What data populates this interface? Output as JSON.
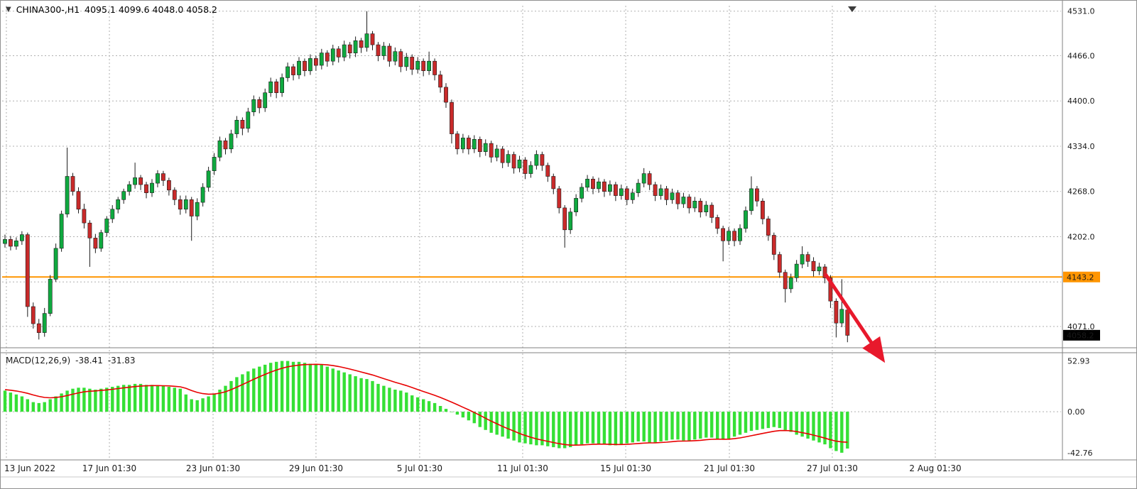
{
  "header": {
    "dropdown_icon": "▼",
    "symbol_timeframe": "CHINA300-,H1",
    "ohlc_text": "4095.1 4099.6 4048.0 4058.2"
  },
  "macd_label": {
    "name": "MACD(12,26,9)",
    "macd_value": "-38.41",
    "signal_value": "-31.83"
  },
  "colors": {
    "background": "#ffffff",
    "grid": "#b0b0b0",
    "wick": "#1c1c1c",
    "candle_up": "#0fa93f",
    "candle_down": "#c92a2a",
    "macd_hist": "#35e035",
    "macd_signal": "#e80000",
    "hline": "#ff9500",
    "arrow": "#e8192c",
    "tag_current_bg": "#000000",
    "tag_text": "#ffffff"
  },
  "chart_data": {
    "type": "candlestick+macd",
    "symbol": "CHINA300-",
    "timeframe": "H1",
    "current_bar": {
      "open": 4095.1,
      "high": 4099.6,
      "low": 4048.0,
      "close": 4058.2
    },
    "horizontal_line_price": 4143.2,
    "y_range_main": [
      4042,
      4539
    ],
    "x_used_fraction": 0.801,
    "price_axis": {
      "gridlines": [
        4531,
        4466,
        4400,
        4334,
        4268,
        4202,
        4136,
        4071
      ],
      "labels": [
        {
          "v": 4531,
          "text": "4531.0"
        },
        {
          "v": 4466,
          "text": "4466.0"
        },
        {
          "v": 4400,
          "text": "4400.0"
        },
        {
          "v": 4334,
          "text": "4334.0"
        },
        {
          "v": 4268,
          "text": "4268.0"
        },
        {
          "v": 4202,
          "text": "4202.0"
        },
        {
          "v": 4071,
          "text": "4071.0"
        }
      ],
      "hline_tag": "4143.2",
      "current_tag": "4058.2"
    },
    "time_axis": [
      {
        "text": "13 Jun 2022",
        "f": 0.004
      },
      {
        "text": "17 Jun 01:30",
        "f": 0.1013
      },
      {
        "text": "23 Jun 01:30",
        "f": 0.1992
      },
      {
        "text": "29 Jun 01:30",
        "f": 0.2964
      },
      {
        "text": "5 Jul 01:30",
        "f": 0.3943
      },
      {
        "text": "11 Jul 01:30",
        "f": 0.4916
      },
      {
        "text": "15 Jul 01:30",
        "f": 0.5889
      },
      {
        "text": "21 Jul 01:30",
        "f": 0.6868
      },
      {
        "text": "27 Jul 01:30",
        "f": 0.784
      },
      {
        "text": "2 Aug 01:30",
        "f": 0.8813
      }
    ],
    "candles": [
      [
        4192,
        4205,
        4186,
        4198
      ],
      [
        4198,
        4203,
        4182,
        4188
      ],
      [
        4188,
        4201,
        4183,
        4196
      ],
      [
        4196,
        4210,
        4190,
        4205
      ],
      [
        4205,
        4208,
        4085,
        4100
      ],
      [
        4100,
        4106,
        4068,
        4075
      ],
      [
        4075,
        4082,
        4052,
        4062
      ],
      [
        4062,
        4098,
        4056,
        4090
      ],
      [
        4090,
        4146,
        4086,
        4140
      ],
      [
        4140,
        4192,
        4136,
        4185
      ],
      [
        4185,
        4240,
        4180,
        4235
      ],
      [
        4235,
        4332,
        4230,
        4290
      ],
      [
        4290,
        4295,
        4262,
        4268
      ],
      [
        4268,
        4274,
        4236,
        4242
      ],
      [
        4242,
        4250,
        4214,
        4222
      ],
      [
        4222,
        4226,
        4158,
        4200
      ],
      [
        4200,
        4206,
        4178,
        4185
      ],
      [
        4185,
        4212,
        4180,
        4208
      ],
      [
        4208,
        4232,
        4202,
        4228
      ],
      [
        4228,
        4248,
        4222,
        4242
      ],
      [
        4242,
        4260,
        4236,
        4256
      ],
      [
        4256,
        4272,
        4250,
        4268
      ],
      [
        4268,
        4283,
        4262,
        4278
      ],
      [
        4278,
        4310,
        4272,
        4288
      ],
      [
        4288,
        4292,
        4270,
        4278
      ],
      [
        4278,
        4282,
        4258,
        4266
      ],
      [
        4266,
        4286,
        4260,
        4280
      ],
      [
        4280,
        4299,
        4274,
        4294
      ],
      [
        4294,
        4298,
        4276,
        4284
      ],
      [
        4284,
        4288,
        4262,
        4270
      ],
      [
        4270,
        4274,
        4248,
        4256
      ],
      [
        4256,
        4262,
        4234,
        4242
      ],
      [
        4242,
        4262,
        4236,
        4256
      ],
      [
        4256,
        4260,
        4196,
        4232
      ],
      [
        4232,
        4258,
        4226,
        4252
      ],
      [
        4252,
        4280,
        4246,
        4274
      ],
      [
        4274,
        4304,
        4268,
        4298
      ],
      [
        4298,
        4324,
        4292,
        4318
      ],
      [
        4318,
        4348,
        4312,
        4342
      ],
      [
        4342,
        4346,
        4322,
        4330
      ],
      [
        4330,
        4358,
        4324,
        4352
      ],
      [
        4352,
        4378,
        4346,
        4372
      ],
      [
        4372,
        4376,
        4350,
        4360
      ],
      [
        4360,
        4390,
        4354,
        4384
      ],
      [
        4384,
        4408,
        4378,
        4402
      ],
      [
        4402,
        4406,
        4382,
        4390
      ],
      [
        4390,
        4418,
        4384,
        4412
      ],
      [
        4412,
        4434,
        4406,
        4428
      ],
      [
        4428,
        4432,
        4404,
        4412
      ],
      [
        4412,
        4440,
        4406,
        4434
      ],
      [
        4434,
        4456,
        4428,
        4450
      ],
      [
        4450,
        4454,
        4430,
        4438
      ],
      [
        4438,
        4464,
        4432,
        4458
      ],
      [
        4458,
        4462,
        4436,
        4444
      ],
      [
        4444,
        4468,
        4438,
        4462
      ],
      [
        4462,
        4466,
        4444,
        4452
      ],
      [
        4452,
        4476,
        4446,
        4470
      ],
      [
        4470,
        4474,
        4450,
        4458
      ],
      [
        4458,
        4482,
        4452,
        4476
      ],
      [
        4476,
        4480,
        4456,
        4464
      ],
      [
        4464,
        4488,
        4458,
        4482
      ],
      [
        4482,
        4486,
        4462,
        4470
      ],
      [
        4470,
        4494,
        4464,
        4488
      ],
      [
        4488,
        4492,
        4470,
        4478
      ],
      [
        4478,
        4531,
        4472,
        4498
      ],
      [
        4498,
        4502,
        4474,
        4482
      ],
      [
        4482,
        4486,
        4458,
        4466
      ],
      [
        4466,
        4486,
        4460,
        4480
      ],
      [
        4480,
        4484,
        4450,
        4458
      ],
      [
        4458,
        4478,
        4452,
        4472
      ],
      [
        4472,
        4476,
        4442,
        4450
      ],
      [
        4450,
        4470,
        4444,
        4464
      ],
      [
        4464,
        4468,
        4438,
        4446
      ],
      [
        4446,
        4464,
        4440,
        4458
      ],
      [
        4458,
        4462,
        4436,
        4444
      ],
      [
        4444,
        4472,
        4438,
        4458
      ],
      [
        4458,
        4462,
        4430,
        4438
      ],
      [
        4438,
        4444,
        4412,
        4420
      ],
      [
        4420,
        4426,
        4390,
        4398
      ],
      [
        4398,
        4402,
        4338,
        4352
      ],
      [
        4352,
        4356,
        4322,
        4330
      ],
      [
        4330,
        4352,
        4324,
        4346
      ],
      [
        4346,
        4350,
        4322,
        4330
      ],
      [
        4330,
        4350,
        4324,
        4344
      ],
      [
        4344,
        4348,
        4318,
        4326
      ],
      [
        4326,
        4344,
        4320,
        4338
      ],
      [
        4338,
        4342,
        4310,
        4318
      ],
      [
        4318,
        4336,
        4312,
        4330
      ],
      [
        4330,
        4334,
        4302,
        4310
      ],
      [
        4310,
        4328,
        4304,
        4322
      ],
      [
        4322,
        4326,
        4294,
        4302
      ],
      [
        4302,
        4320,
        4296,
        4314
      ],
      [
        4314,
        4318,
        4286,
        4294
      ],
      [
        4294,
        4312,
        4288,
        4306
      ],
      [
        4306,
        4328,
        4300,
        4322
      ],
      [
        4322,
        4326,
        4298,
        4306
      ],
      [
        4306,
        4310,
        4282,
        4290
      ],
      [
        4290,
        4294,
        4264,
        4272
      ],
      [
        4272,
        4276,
        4236,
        4244
      ],
      [
        4244,
        4248,
        4186,
        4212
      ],
      [
        4212,
        4244,
        4206,
        4238
      ],
      [
        4238,
        4264,
        4232,
        4258
      ],
      [
        4258,
        4280,
        4252,
        4274
      ],
      [
        4274,
        4292,
        4268,
        4286
      ],
      [
        4286,
        4290,
        4264,
        4272
      ],
      [
        4272,
        4288,
        4266,
        4282
      ],
      [
        4282,
        4286,
        4260,
        4268
      ],
      [
        4268,
        4284,
        4262,
        4278
      ],
      [
        4278,
        4282,
        4254,
        4262
      ],
      [
        4262,
        4278,
        4256,
        4272
      ],
      [
        4272,
        4276,
        4248,
        4256
      ],
      [
        4256,
        4272,
        4250,
        4266
      ],
      [
        4266,
        4286,
        4260,
        4280
      ],
      [
        4280,
        4302,
        4274,
        4294
      ],
      [
        4294,
        4298,
        4270,
        4278
      ],
      [
        4278,
        4282,
        4254,
        4262
      ],
      [
        4262,
        4278,
        4256,
        4272
      ],
      [
        4272,
        4276,
        4248,
        4256
      ],
      [
        4256,
        4272,
        4250,
        4266
      ],
      [
        4266,
        4270,
        4242,
        4250
      ],
      [
        4250,
        4266,
        4244,
        4260
      ],
      [
        4260,
        4264,
        4236,
        4244
      ],
      [
        4244,
        4260,
        4238,
        4254
      ],
      [
        4254,
        4258,
        4230,
        4238
      ],
      [
        4238,
        4254,
        4232,
        4248
      ],
      [
        4248,
        4252,
        4222,
        4230
      ],
      [
        4230,
        4234,
        4206,
        4214
      ],
      [
        4214,
        4218,
        4166,
        4196
      ],
      [
        4196,
        4216,
        4190,
        4210
      ],
      [
        4210,
        4214,
        4188,
        4196
      ],
      [
        4196,
        4220,
        4190,
        4214
      ],
      [
        4214,
        4246,
        4208,
        4240
      ],
      [
        4240,
        4290,
        4234,
        4272
      ],
      [
        4272,
        4276,
        4246,
        4254
      ],
      [
        4254,
        4258,
        4220,
        4228
      ],
      [
        4228,
        4232,
        4196,
        4204
      ],
      [
        4204,
        4208,
        4168,
        4176
      ],
      [
        4176,
        4180,
        4142,
        4150
      ],
      [
        4150,
        4154,
        4106,
        4126
      ],
      [
        4126,
        4148,
        4120,
        4142
      ],
      [
        4142,
        4168,
        4136,
        4162
      ],
      [
        4162,
        4188,
        4156,
        4176
      ],
      [
        4176,
        4180,
        4158,
        4166
      ],
      [
        4166,
        4172,
        4144,
        4152
      ],
      [
        4152,
        4164,
        4146,
        4158
      ],
      [
        4158,
        4162,
        4134,
        4142
      ],
      [
        4142,
        4146,
        4098,
        4108
      ],
      [
        4108,
        4112,
        4055,
        4076
      ],
      [
        4076,
        4140,
        4070,
        4096
      ],
      [
        4095,
        4100,
        4048,
        4058
      ]
    ],
    "macd": {
      "params": "12,26,9",
      "macd_value": -38.41,
      "signal_value": -31.83,
      "y_range": [
        -48,
        60
      ],
      "axis_labels": [
        {
          "v": 52.93,
          "text": "52.93"
        },
        {
          "v": 0,
          "text": "0.00"
        },
        {
          "v": -42.76,
          "text": "-42.76"
        }
      ],
      "hist": [
        22,
        20,
        18,
        16,
        13,
        10,
        9,
        10,
        13,
        16,
        19,
        22,
        24,
        25,
        25,
        24,
        23,
        24,
        25,
        26,
        27,
        28,
        28,
        29,
        29,
        28,
        28,
        27,
        27,
        26,
        25,
        24,
        18,
        13,
        12,
        14,
        16,
        19,
        23,
        27,
        32,
        36,
        39,
        42,
        45,
        47,
        49,
        51,
        52,
        52.93,
        52.9,
        52,
        52,
        51,
        50,
        50,
        49,
        47,
        45,
        43,
        41,
        39,
        37,
        35,
        34,
        32,
        29,
        27,
        25,
        23,
        22,
        20,
        17,
        15,
        13,
        11,
        9,
        6,
        3,
        0,
        -3,
        -6,
        -9,
        -12,
        -16,
        -19,
        -22,
        -24,
        -26,
        -28,
        -30,
        -32,
        -33,
        -34,
        -35,
        -35,
        -36,
        -37,
        -38,
        -38,
        -37,
        -35,
        -34,
        -33,
        -33,
        -34,
        -34,
        -35,
        -35,
        -34,
        -33,
        -32,
        -31,
        -31,
        -32,
        -32,
        -31,
        -30,
        -29,
        -29,
        -30,
        -30,
        -29,
        -28,
        -27,
        -27,
        -28,
        -29,
        -28,
        -26,
        -24,
        -22,
        -20,
        -19,
        -18,
        -17,
        -16,
        -17,
        -19,
        -21,
        -24,
        -26,
        -28,
        -30,
        -32,
        -34,
        -38,
        -41,
        -42.76,
        -38.41
      ],
      "signal": [
        23,
        22.4,
        21.6,
        20.5,
        19.2,
        17.5,
        16,
        14.9,
        14.5,
        14.8,
        15.6,
        16.9,
        18.3,
        19.6,
        20.7,
        21.4,
        21.7,
        22.2,
        22.7,
        23.4,
        24.1,
        24.9,
        25.5,
        26.2,
        26.8,
        27,
        27.2,
        27.2,
        27.1,
        26.9,
        26.5,
        26,
        24.4,
        22.1,
        20.1,
        18.9,
        18.3,
        18.4,
        19.3,
        20.8,
        23,
        25.6,
        28.3,
        31,
        33.8,
        36.4,
        38.9,
        41.3,
        43.4,
        45.3,
        46.8,
        47.8,
        48.6,
        49.1,
        49.3,
        49.4,
        49.3,
        48.8,
        48.1,
        47.1,
        45.9,
        44.5,
        43,
        41.4,
        39.9,
        38.3,
        36.4,
        34.5,
        32.6,
        30.7,
        29,
        27.2,
        25.2,
        23.1,
        21.1,
        19.1,
        17.1,
        14.9,
        12.5,
        10,
        7.4,
        4.7,
        2,
        -0.8,
        -3.8,
        -6.8,
        -9.8,
        -12.6,
        -15.3,
        -17.8,
        -20.2,
        -22.6,
        -24.7,
        -26.6,
        -28.3,
        -29.6,
        -30.9,
        -32.1,
        -33.3,
        -34.2,
        -34.8,
        -34.8,
        -34.6,
        -34.3,
        -34,
        -33.8,
        -33.8,
        -34,
        -34.2,
        -34.2,
        -34,
        -33.6,
        -33.1,
        -32.7,
        -32.5,
        -32.4,
        -32.1,
        -31.7,
        -31.2,
        -30.7,
        -30.6,
        -30.5,
        -30.2,
        -29.8,
        -29.2,
        -28.8,
        -28.6,
        -28.7,
        -28.6,
        -28.1,
        -27.3,
        -26.2,
        -25,
        -23.8,
        -22.6,
        -21.5,
        -20.4,
        -19.7,
        -19.6,
        -19.9,
        -20.7,
        -21.8,
        -23,
        -24.4,
        -25.9,
        -27.5,
        -29.3,
        -30.7,
        -31.5,
        -31.83
      ]
    }
  }
}
